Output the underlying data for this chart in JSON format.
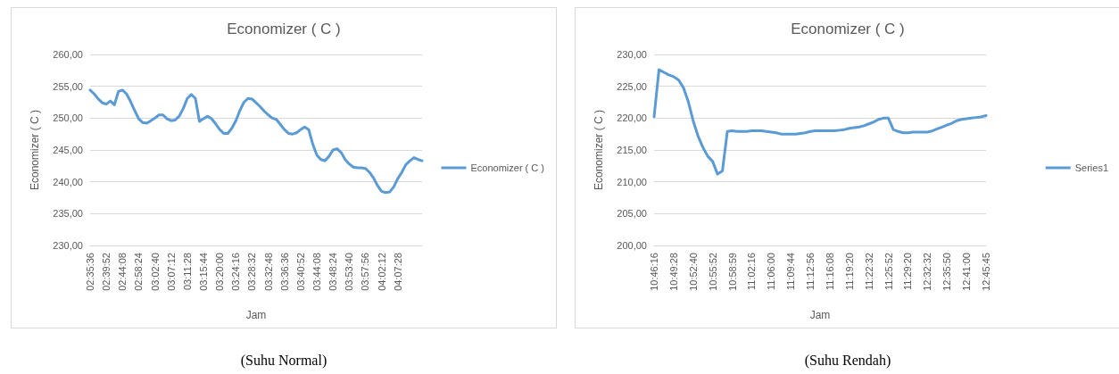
{
  "chart_data": [
    {
      "type": "line",
      "title": "Economizer ( C )",
      "xlabel": "Jam",
      "ylabel": "Economizer ( C )",
      "annotations": [
        "(Suhu Normal)"
      ],
      "categories": [
        "02:35:36",
        null,
        null,
        null,
        "02:39:52",
        null,
        null,
        null,
        "02:44:08",
        null,
        null,
        null,
        "02:58:24",
        null,
        null,
        null,
        "03:02:40",
        null,
        null,
        null,
        "03:07:12",
        null,
        null,
        null,
        "03:11:28",
        null,
        null,
        null,
        "03:15:44",
        null,
        null,
        null,
        "03:20:00",
        null,
        null,
        null,
        "03:24:16",
        null,
        null,
        null,
        "03:28:32",
        null,
        null,
        null,
        "03:32:48",
        null,
        null,
        null,
        "03:36:36",
        null,
        null,
        null,
        "03:40:52",
        null,
        null,
        null,
        "03:44:08",
        null,
        null,
        null,
        "03:48:24",
        null,
        null,
        null,
        "03:53:40",
        null,
        null,
        null,
        "03:57:56",
        null,
        null,
        null,
        "04:02:12",
        null,
        null,
        null,
        "04:07:28",
        null,
        null,
        null,
        null,
        null,
        null
      ],
      "series": [
        {
          "name": "Economizer ( C )",
          "color": "#5b9bd5",
          "values": [
            254.4,
            253.8,
            253.0,
            252.4,
            252.2,
            252.7,
            252.1,
            254.2,
            254.4,
            253.8,
            252.6,
            251.2,
            249.9,
            249.3,
            249.2,
            249.6,
            250.0,
            250.5,
            250.5,
            249.9,
            249.6,
            249.7,
            250.3,
            251.5,
            253.1,
            253.7,
            253.1,
            249.5,
            249.9,
            250.3,
            249.9,
            249.1,
            248.2,
            247.6,
            247.6,
            248.4,
            249.6,
            251.2,
            252.5,
            253.1,
            253.0,
            252.4,
            251.8,
            251.1,
            250.5,
            250.0,
            249.8,
            249.0,
            248.2,
            247.6,
            247.5,
            247.7,
            248.2,
            248.6,
            248.2,
            245.9,
            244.2,
            243.5,
            243.3,
            244.0,
            245.0,
            245.2,
            244.6,
            243.5,
            242.8,
            242.3,
            242.2,
            242.2,
            242.1,
            241.5,
            240.6,
            239.4,
            238.5,
            238.3,
            238.4,
            239.2,
            240.5,
            241.5,
            242.7,
            243.3,
            243.8,
            243.5,
            243.3
          ]
        }
      ],
      "ylim": [
        230,
        260
      ],
      "yticks": [
        {
          "value": 230,
          "label": "230,00"
        },
        {
          "value": 235,
          "label": "235,00"
        },
        {
          "value": 240,
          "label": "240,00"
        },
        {
          "value": 245,
          "label": "245,00"
        },
        {
          "value": 250,
          "label": "250,00"
        },
        {
          "value": 255,
          "label": "255,00"
        },
        {
          "value": 260,
          "label": "260,00"
        }
      ],
      "grid": "y",
      "legend": "right",
      "marker": "none",
      "line_style": "solid"
    },
    {
      "type": "line",
      "title": "Economizer ( C )",
      "xlabel": "Jam",
      "ylabel": "Economizer ( C )",
      "annotations": [
        "(Suhu Rendah)"
      ],
      "categories": [
        "10:46:16",
        null,
        null,
        null,
        "10:49:28",
        null,
        null,
        null,
        "10:52:40",
        null,
        null,
        null,
        "10:55:52",
        null,
        null,
        null,
        "10:58:59",
        null,
        null,
        null,
        "11:02:16",
        null,
        null,
        null,
        "11:06:00",
        null,
        null,
        null,
        "11:09:44",
        null,
        null,
        null,
        "11:12:56",
        null,
        null,
        null,
        "11:16:08",
        null,
        null,
        null,
        "11:19:20",
        null,
        null,
        null,
        "11:22:32",
        null,
        null,
        null,
        "11:25:52",
        null,
        null,
        null,
        "11:29:20",
        null,
        null,
        null,
        "12:32:32",
        null,
        null,
        null,
        "12:35:50",
        null,
        null,
        null,
        "12:41:00",
        null,
        null,
        null,
        "12:45:45"
      ],
      "series": [
        {
          "name": "Series1",
          "color": "#5b9bd5",
          "values": [
            220.2,
            227.6,
            227.2,
            226.8,
            226.5,
            226.0,
            224.8,
            222.6,
            219.6,
            217.2,
            215.4,
            214.0,
            213.2,
            211.2,
            211.7,
            217.9,
            218.0,
            217.9,
            217.9,
            217.9,
            218.0,
            218.0,
            218.0,
            217.9,
            217.8,
            217.7,
            217.5,
            217.5,
            217.5,
            217.5,
            217.6,
            217.7,
            217.9,
            218.0,
            218.0,
            218.0,
            218.0,
            218.0,
            218.1,
            218.2,
            218.4,
            218.5,
            218.6,
            218.8,
            219.1,
            219.4,
            219.8,
            220.0,
            220.0,
            218.2,
            217.9,
            217.7,
            217.7,
            217.8,
            217.8,
            217.8,
            217.8,
            218.0,
            218.3,
            218.6,
            218.9,
            219.2,
            219.6,
            219.8,
            219.9,
            220.0,
            220.1,
            220.2,
            220.4
          ]
        }
      ],
      "ylim": [
        200,
        230
      ],
      "yticks": [
        {
          "value": 200,
          "label": "200,00"
        },
        {
          "value": 205,
          "label": "205,00"
        },
        {
          "value": 210,
          "label": "210,00"
        },
        {
          "value": 215,
          "label": "215,00"
        },
        {
          "value": 220,
          "label": "220,00"
        },
        {
          "value": 225,
          "label": "225,00"
        },
        {
          "value": 230,
          "label": "230,00"
        }
      ],
      "grid": "y",
      "legend": "right",
      "marker": "none",
      "line_style": "solid"
    }
  ]
}
